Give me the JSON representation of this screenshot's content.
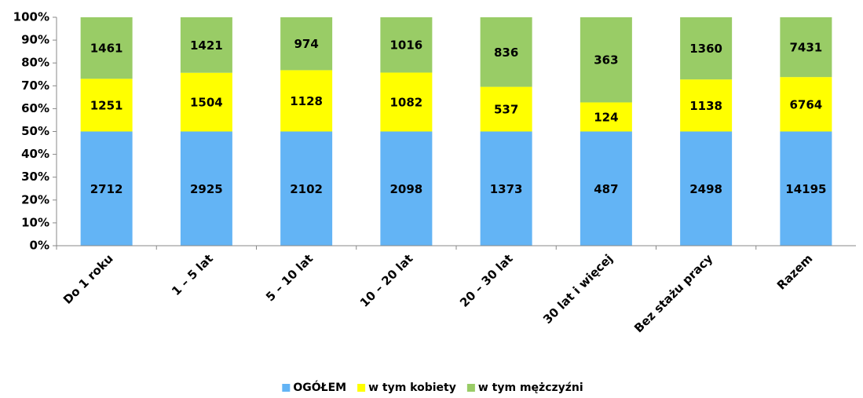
{
  "chart_data": {
    "type": "stacked_percent_bar",
    "categories": [
      "Do 1 roku",
      "1 – 5 lat",
      "5 – 10 lat",
      "10 – 20 lat",
      "20 – 30 lat",
      "30 lat i więcej",
      "Bez stażu pracy",
      "Razem"
    ],
    "series": [
      {
        "name": "OGÓŁEM",
        "color": "#63b4f5",
        "values": [
          2712,
          2925,
          2102,
          2098,
          1373,
          487,
          2498,
          14195
        ]
      },
      {
        "name": "w tym kobiety",
        "color": "#ffff00",
        "values": [
          1251,
          1504,
          1128,
          1082,
          537,
          124,
          1138,
          6764
        ]
      },
      {
        "name": "w tym mężczyźni",
        "color": "#99cc66",
        "values": [
          1461,
          1421,
          974,
          1016,
          836,
          363,
          1360,
          7431
        ]
      }
    ],
    "ylim": [
      0,
      100
    ],
    "yticks": [
      {
        "value": 0,
        "label": "0%"
      },
      {
        "value": 10,
        "label": "10%"
      },
      {
        "value": 20,
        "label": "20%"
      },
      {
        "value": 30,
        "label": "30%"
      },
      {
        "value": 40,
        "label": "40%"
      },
      {
        "value": 50,
        "label": "50%"
      },
      {
        "value": 60,
        "label": "60%"
      },
      {
        "value": 70,
        "label": "70%"
      },
      {
        "value": 80,
        "label": "80%"
      },
      {
        "value": 90,
        "label": "90%"
      },
      {
        "value": 100,
        "label": "100%"
      }
    ],
    "grid": false,
    "legend": "bottom"
  }
}
